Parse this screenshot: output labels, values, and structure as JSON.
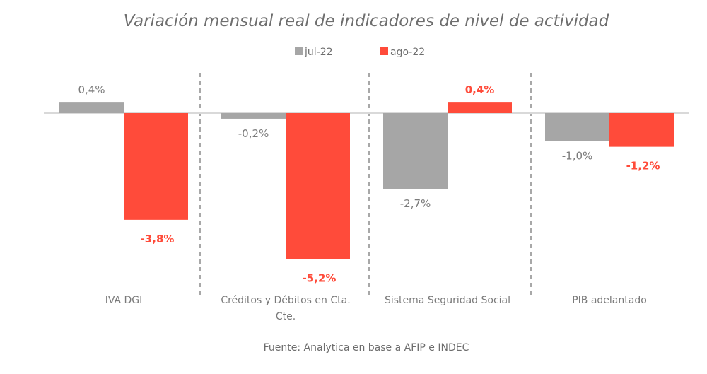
{
  "chart_data": {
    "type": "bar",
    "title": "Variación mensual real de indicadores de nivel de actividad",
    "categories": [
      "IVA DGI",
      "Créditos y Débitos en Cta. Cte.",
      "Sistema Seguridad Social",
      "PIB adelantado"
    ],
    "category_lines": [
      [
        "IVA DGI"
      ],
      [
        "Créditos y Débitos en Cta.",
        "Cte."
      ],
      [
        "Sistema Seguridad Social"
      ],
      [
        "PIB adelantado"
      ]
    ],
    "series": [
      {
        "name": "jul-22",
        "color": "#a6a6a6",
        "label_color": "#7a7a7a",
        "values": [
          0.4,
          -0.2,
          -2.7,
          -1.0
        ],
        "labels": [
          "0,4%",
          "-0,2%",
          "-2,7%",
          "-1,0%"
        ]
      },
      {
        "name": "ago-22",
        "color": "#ff4b3a",
        "label_color": "#ff4b3a",
        "values": [
          -3.8,
          -5.2,
          0.4,
          -1.2
        ],
        "labels": [
          "-3,8%",
          "-5,2%",
          "0,4%",
          "-1,2%"
        ]
      }
    ],
    "ylim": [
      -5.2,
      0.4
    ],
    "legend_position": "top-center",
    "grid": false,
    "category_separators": "dashed"
  },
  "source": "Fuente: Analytica en base a AFIP e INDEC",
  "colors": {
    "axis": "#d9d9d9",
    "separator": "#8c8c8c",
    "text": "#6e6e6e"
  }
}
